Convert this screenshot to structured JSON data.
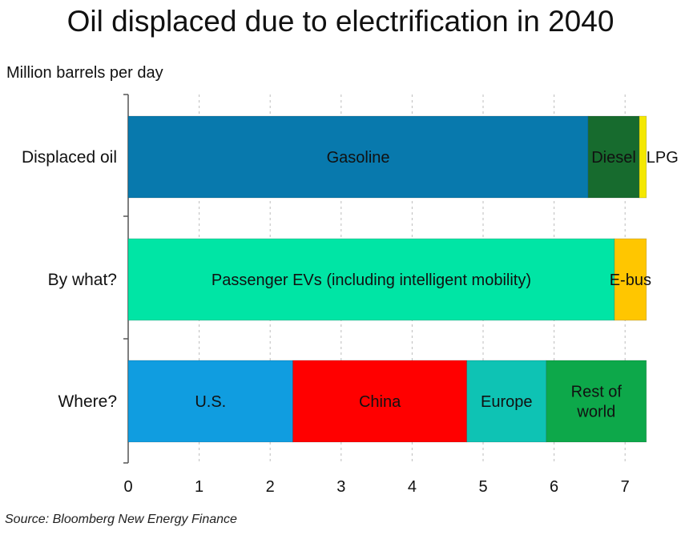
{
  "chart_data": {
    "type": "bar",
    "orientation": "horizontal",
    "stacked": true,
    "title": "Oil displaced due to electrification in 2040",
    "ylabel": "Million barrels per day",
    "xlim": [
      0,
      7.5
    ],
    "xticks": [
      "0",
      "1",
      "2",
      "3",
      "4",
      "5",
      "6",
      "7"
    ],
    "grid": "vertical dashed",
    "categories": [
      "Displaced oil",
      "By what?",
      "Where?"
    ],
    "bars": [
      {
        "category": "Displaced oil",
        "segments": [
          {
            "name": "Gasoline",
            "value": 6.48,
            "color": "#0879ad",
            "text_color": "#111111"
          },
          {
            "name": "Diesel",
            "value": 0.72,
            "color": "#176b2e",
            "text_color": "#111111"
          },
          {
            "name": "LPG",
            "value": 0.1,
            "color": "#f4e800",
            "text_color": "#111111",
            "label_outside": true
          }
        ]
      },
      {
        "category": "By what?",
        "segments": [
          {
            "name": "Passenger EVs (including intelligent mobility)",
            "value": 6.85,
            "color": "#00e5a5",
            "text_color": "#111111"
          },
          {
            "name": "E-bus",
            "value": 0.45,
            "color": "#ffc600",
            "text_color": "#111111"
          }
        ]
      },
      {
        "category": "Where?",
        "segments": [
          {
            "name": "U.S.",
            "value": 2.32,
            "color": "#109de0",
            "text_color": "#111111"
          },
          {
            "name": "China",
            "value": 2.45,
            "color": "#ff0000",
            "text_color": "#111111"
          },
          {
            "name": "Europe",
            "value": 1.12,
            "color": "#0ec3b4",
            "text_color": "#111111"
          },
          {
            "name": "Rest of\nworld",
            "value": 1.41,
            "color": "#0da84a",
            "text_color": "#111111"
          }
        ]
      }
    ]
  },
  "source": "Source: Bloomberg New Energy Finance"
}
